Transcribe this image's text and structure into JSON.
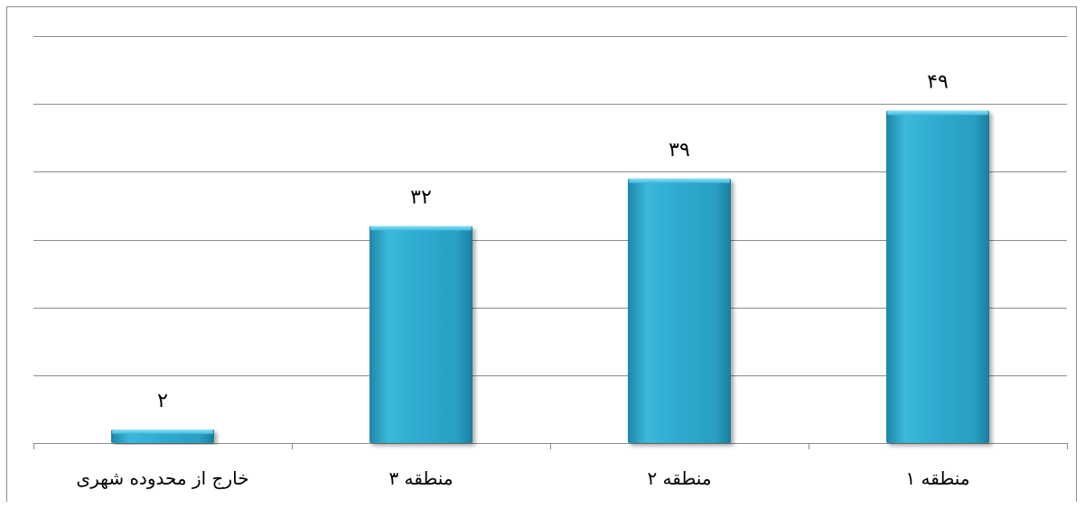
{
  "chart_data": {
    "type": "bar",
    "categories": [
      "منطقه ۱",
      "منطقه ۲",
      "منطقه ۳",
      "خارج از محدوده شهری"
    ],
    "values": [
      49,
      39,
      32,
      2
    ],
    "value_labels": [
      "۴۹",
      "۳۹",
      "۳۲",
      "۲"
    ],
    "category_order": "right-to-left",
    "title": "",
    "xlabel": "",
    "ylabel": "",
    "ylim": [
      0,
      60
    ],
    "gridlines": true,
    "legend": "none",
    "bar_color": "#2fa9cf",
    "bar_color_light": "#5ccbe8",
    "bar_color_dark": "#1f86a8"
  }
}
